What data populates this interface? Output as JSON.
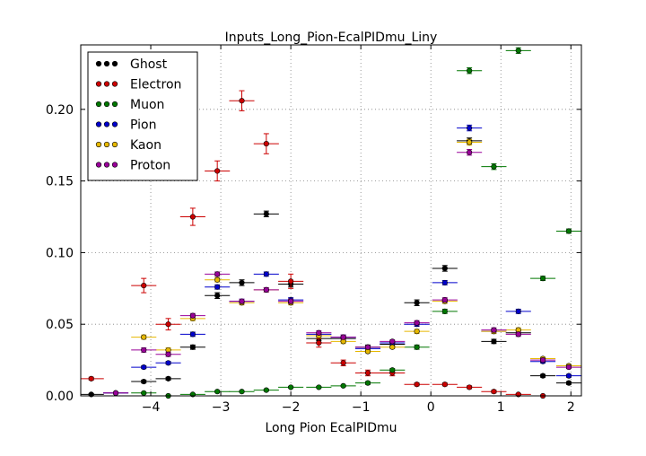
{
  "chart_data": {
    "type": "scatter",
    "title": "Inputs_Long_Pion-EcalPIDmu_Liny",
    "xlabel": "Long Pion EcalPIDmu",
    "ylabel": "",
    "xlim": [
      -5.0,
      2.15
    ],
    "ylim": [
      0.0,
      0.245
    ],
    "xticks": [
      -4,
      -3,
      -2,
      -1,
      0,
      1,
      2
    ],
    "xtick_labels": [
      "−4",
      "−3",
      "−2",
      "−1",
      "0",
      "1",
      "2"
    ],
    "yticks": [
      0.0,
      0.05,
      0.1,
      0.15,
      0.2
    ],
    "ytick_labels": [
      "0.00",
      "0.05",
      "0.10",
      "0.15",
      "0.20"
    ],
    "grid": true,
    "legend_position": "top-left",
    "bin_half_width": 0.18,
    "series": [
      {
        "name": "Ghost",
        "color": "#000000",
        "points": [
          {
            "x": -4.85,
            "y": 0.001,
            "err": 0.0005
          },
          {
            "x": -4.5,
            "y": 0.002,
            "err": 0.0005
          },
          {
            "x": -4.1,
            "y": 0.01,
            "err": 0.001
          },
          {
            "x": -3.75,
            "y": 0.012,
            "err": 0.001
          },
          {
            "x": -3.4,
            "y": 0.034,
            "err": 0.0015
          },
          {
            "x": -3.05,
            "y": 0.07,
            "err": 0.002
          },
          {
            "x": -2.7,
            "y": 0.079,
            "err": 0.002
          },
          {
            "x": -2.35,
            "y": 0.127,
            "err": 0.002
          },
          {
            "x": -2.0,
            "y": 0.078,
            "err": 0.002
          },
          {
            "x": -1.6,
            "y": 0.04,
            "err": 0.0015
          },
          {
            "x": -1.25,
            "y": 0.04,
            "err": 0.0015
          },
          {
            "x": -0.9,
            "y": 0.034,
            "err": 0.0015
          },
          {
            "x": -0.55,
            "y": 0.036,
            "err": 0.0015
          },
          {
            "x": -0.2,
            "y": 0.065,
            "err": 0.002
          },
          {
            "x": 0.2,
            "y": 0.089,
            "err": 0.002
          },
          {
            "x": 0.55,
            "y": 0.178,
            "err": 0.002
          },
          {
            "x": 0.9,
            "y": 0.038,
            "err": 0.0015
          },
          {
            "x": 1.25,
            "y": 0.044,
            "err": 0.0015
          },
          {
            "x": 1.6,
            "y": 0.014,
            "err": 0.001
          },
          {
            "x": 1.97,
            "y": 0.009,
            "err": 0.001
          }
        ]
      },
      {
        "name": "Electron",
        "color": "#cc0000",
        "points": [
          {
            "x": -4.85,
            "y": 0.012,
            "err": 0.001
          },
          {
            "x": -4.1,
            "y": 0.077,
            "err": 0.005
          },
          {
            "x": -3.75,
            "y": 0.05,
            "err": 0.004
          },
          {
            "x": -3.4,
            "y": 0.125,
            "err": 0.006
          },
          {
            "x": -3.05,
            "y": 0.157,
            "err": 0.007
          },
          {
            "x": -2.7,
            "y": 0.206,
            "err": 0.007
          },
          {
            "x": -2.35,
            "y": 0.176,
            "err": 0.007
          },
          {
            "x": -2.0,
            "y": 0.08,
            "err": 0.005
          },
          {
            "x": -1.6,
            "y": 0.037,
            "err": 0.003
          },
          {
            "x": -1.25,
            "y": 0.023,
            "err": 0.002
          },
          {
            "x": -0.9,
            "y": 0.016,
            "err": 0.002
          },
          {
            "x": -0.55,
            "y": 0.016,
            "err": 0.002
          },
          {
            "x": -0.2,
            "y": 0.008,
            "err": 0.001
          },
          {
            "x": 0.2,
            "y": 0.008,
            "err": 0.001
          },
          {
            "x": 0.55,
            "y": 0.006,
            "err": 0.001
          },
          {
            "x": 0.9,
            "y": 0.003,
            "err": 0.001
          },
          {
            "x": 1.25,
            "y": 0.001,
            "err": 0.0005
          },
          {
            "x": 1.6,
            "y": 0.0,
            "err": 0.0
          }
        ]
      },
      {
        "name": "Muon",
        "color": "#007700",
        "points": [
          {
            "x": -4.1,
            "y": 0.002,
            "err": 0.0005
          },
          {
            "x": -3.75,
            "y": 0.0,
            "err": 0.0
          },
          {
            "x": -3.4,
            "y": 0.001,
            "err": 0.0005
          },
          {
            "x": -3.05,
            "y": 0.003,
            "err": 0.0005
          },
          {
            "x": -2.7,
            "y": 0.003,
            "err": 0.0005
          },
          {
            "x": -2.35,
            "y": 0.004,
            "err": 0.0005
          },
          {
            "x": -2.0,
            "y": 0.006,
            "err": 0.0005
          },
          {
            "x": -1.6,
            "y": 0.006,
            "err": 0.0005
          },
          {
            "x": -1.25,
            "y": 0.007,
            "err": 0.0005
          },
          {
            "x": -0.9,
            "y": 0.009,
            "err": 0.001
          },
          {
            "x": -0.55,
            "y": 0.018,
            "err": 0.001
          },
          {
            "x": -0.2,
            "y": 0.034,
            "err": 0.0015
          },
          {
            "x": 0.2,
            "y": 0.059,
            "err": 0.0015
          },
          {
            "x": 0.55,
            "y": 0.227,
            "err": 0.002
          },
          {
            "x": 0.9,
            "y": 0.16,
            "err": 0.002
          },
          {
            "x": 1.25,
            "y": 0.241,
            "err": 0.002
          },
          {
            "x": 1.6,
            "y": 0.082,
            "err": 0.0015
          },
          {
            "x": 1.97,
            "y": 0.115,
            "err": 0.0015
          }
        ]
      },
      {
        "name": "Pion",
        "color": "#0000cc",
        "points": [
          {
            "x": -4.5,
            "y": 0.002,
            "err": 0.0005
          },
          {
            "x": -4.1,
            "y": 0.02,
            "err": 0.001
          },
          {
            "x": -3.75,
            "y": 0.023,
            "err": 0.001
          },
          {
            "x": -3.4,
            "y": 0.043,
            "err": 0.0015
          },
          {
            "x": -3.05,
            "y": 0.076,
            "err": 0.0015
          },
          {
            "x": -2.7,
            "y": 0.066,
            "err": 0.0015
          },
          {
            "x": -2.35,
            "y": 0.085,
            "err": 0.0015
          },
          {
            "x": -2.0,
            "y": 0.067,
            "err": 0.0015
          },
          {
            "x": -1.6,
            "y": 0.043,
            "err": 0.0015
          },
          {
            "x": -1.25,
            "y": 0.041,
            "err": 0.0015
          },
          {
            "x": -0.9,
            "y": 0.033,
            "err": 0.001
          },
          {
            "x": -0.55,
            "y": 0.037,
            "err": 0.001
          },
          {
            "x": -0.2,
            "y": 0.05,
            "err": 0.0015
          },
          {
            "x": 0.2,
            "y": 0.079,
            "err": 0.0015
          },
          {
            "x": 0.55,
            "y": 0.187,
            "err": 0.002
          },
          {
            "x": 0.9,
            "y": 0.045,
            "err": 0.0015
          },
          {
            "x": 1.25,
            "y": 0.059,
            "err": 0.0015
          },
          {
            "x": 1.6,
            "y": 0.024,
            "err": 0.001
          },
          {
            "x": 1.97,
            "y": 0.014,
            "err": 0.001
          }
        ]
      },
      {
        "name": "Kaon",
        "color": "#e6b800",
        "points": [
          {
            "x": -4.1,
            "y": 0.041,
            "err": 0.0015
          },
          {
            "x": -3.75,
            "y": 0.032,
            "err": 0.0015
          },
          {
            "x": -3.4,
            "y": 0.054,
            "err": 0.0015
          },
          {
            "x": -3.05,
            "y": 0.081,
            "err": 0.0015
          },
          {
            "x": -2.7,
            "y": 0.065,
            "err": 0.0015
          },
          {
            "x": -2.35,
            "y": 0.074,
            "err": 0.0015
          },
          {
            "x": -2.0,
            "y": 0.065,
            "err": 0.0015
          },
          {
            "x": -1.6,
            "y": 0.042,
            "err": 0.0015
          },
          {
            "x": -1.25,
            "y": 0.038,
            "err": 0.0015
          },
          {
            "x": -0.9,
            "y": 0.031,
            "err": 0.001
          },
          {
            "x": -0.55,
            "y": 0.034,
            "err": 0.001
          },
          {
            "x": -0.2,
            "y": 0.045,
            "err": 0.0015
          },
          {
            "x": 0.2,
            "y": 0.066,
            "err": 0.0015
          },
          {
            "x": 0.55,
            "y": 0.177,
            "err": 0.002
          },
          {
            "x": 0.9,
            "y": 0.045,
            "err": 0.0015
          },
          {
            "x": 1.25,
            "y": 0.046,
            "err": 0.0015
          },
          {
            "x": 1.6,
            "y": 0.026,
            "err": 0.001
          },
          {
            "x": 1.97,
            "y": 0.021,
            "err": 0.001
          }
        ]
      },
      {
        "name": "Proton",
        "color": "#990099",
        "points": [
          {
            "x": -4.5,
            "y": 0.002,
            "err": 0.0005
          },
          {
            "x": -4.1,
            "y": 0.032,
            "err": 0.0015
          },
          {
            "x": -3.75,
            "y": 0.029,
            "err": 0.0015
          },
          {
            "x": -3.4,
            "y": 0.056,
            "err": 0.0015
          },
          {
            "x": -3.05,
            "y": 0.085,
            "err": 0.0015
          },
          {
            "x": -2.7,
            "y": 0.066,
            "err": 0.0015
          },
          {
            "x": -2.35,
            "y": 0.074,
            "err": 0.0015
          },
          {
            "x": -2.0,
            "y": 0.066,
            "err": 0.0015
          },
          {
            "x": -1.6,
            "y": 0.044,
            "err": 0.0015
          },
          {
            "x": -1.25,
            "y": 0.041,
            "err": 0.0015
          },
          {
            "x": -0.9,
            "y": 0.034,
            "err": 0.001
          },
          {
            "x": -0.55,
            "y": 0.038,
            "err": 0.001
          },
          {
            "x": -0.2,
            "y": 0.051,
            "err": 0.0015
          },
          {
            "x": 0.2,
            "y": 0.067,
            "err": 0.0015
          },
          {
            "x": 0.55,
            "y": 0.17,
            "err": 0.002
          },
          {
            "x": 0.9,
            "y": 0.046,
            "err": 0.0015
          },
          {
            "x": 1.25,
            "y": 0.043,
            "err": 0.0015
          },
          {
            "x": 1.6,
            "y": 0.025,
            "err": 0.001
          },
          {
            "x": 1.97,
            "y": 0.02,
            "err": 0.001
          }
        ]
      }
    ]
  }
}
